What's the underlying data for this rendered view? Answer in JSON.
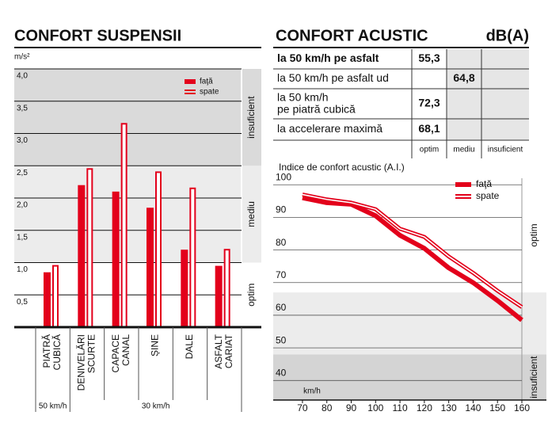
{
  "chart_data": [
    {
      "type": "bar",
      "title": "CONFORT SUSPENSII",
      "y_unit": "m/s²",
      "categories": [
        "PIATRĂ CUBICĂ",
        "DENIVELĂRI SCURTE",
        "CAPACE CANAL",
        "ȘINE",
        "DALE",
        "ASFALT CARIAT"
      ],
      "series": [
        {
          "name": "faţă",
          "color": "#e3001b",
          "values": [
            0.85,
            2.2,
            2.1,
            1.85,
            1.2,
            0.95
          ]
        },
        {
          "name": "spate",
          "color": "#e3001b",
          "values": [
            0.95,
            2.45,
            3.15,
            2.4,
            2.15,
            1.2
          ]
        }
      ],
      "ylim": [
        0,
        4
      ],
      "yticks": [
        {
          "value": 0.5,
          "label": "0,5"
        },
        {
          "value": 1,
          "label": "1,0"
        },
        {
          "value": 1.5,
          "label": "1,5"
        },
        {
          "value": 2,
          "label": "2,0"
        },
        {
          "value": 2.5,
          "label": "2,5"
        },
        {
          "value": 3,
          "label": "3,0"
        },
        {
          "value": 3.5,
          "label": "3,5"
        },
        {
          "value": 4,
          "label": "4,0"
        }
      ],
      "grid": true,
      "zones": [
        {
          "label": "optim",
          "from": 0,
          "to": 1,
          "color": "#ffffff"
        },
        {
          "label": "mediu",
          "from": 1,
          "to": 2.5,
          "color": "#ececec"
        },
        {
          "label": "insuficient",
          "from": 2.5,
          "to": 4,
          "color": "#dadada"
        }
      ],
      "speed_labels": [
        "50 km/h",
        "30 km/h"
      ]
    },
    {
      "type": "line",
      "title": "Indice de confort acustic  (A.I.)",
      "x_unit": "km/h",
      "x": [
        70,
        80,
        90,
        100,
        110,
        120,
        130,
        140,
        150,
        160
      ],
      "series": [
        {
          "name": "faţă",
          "color": "#e3001b",
          "values": [
            96,
            94.5,
            94,
            90.5,
            84.5,
            80.5,
            74.5,
            70,
            64.5,
            58.5
          ]
        },
        {
          "name": "spate",
          "color": "#e3001b",
          "values": [
            97,
            95.5,
            94.5,
            92.5,
            86.5,
            84,
            78,
            73,
            67.5,
            62.5
          ]
        }
      ],
      "xlim": [
        58,
        160
      ],
      "xticks": [
        70,
        80,
        90,
        100,
        110,
        120,
        130,
        140,
        150,
        160
      ],
      "ylim": [
        34,
        102
      ],
      "yticks": [
        40,
        50,
        60,
        70,
        80,
        90,
        100
      ],
      "grid": true,
      "zones": [
        {
          "label": "insuficient",
          "from": 34,
          "to": 48,
          "color": "#d4d4d4"
        },
        {
          "label": null,
          "from": 48,
          "to": 67,
          "color": "#ececec"
        },
        {
          "label": "optim",
          "from": 67,
          "to": 102,
          "color": "#ffffff"
        }
      ]
    }
  ],
  "table": {
    "title": "CONFORT ACUSTIC",
    "unit": "dB(A)",
    "columns": [
      "optim",
      "mediu",
      "insuficient"
    ],
    "rows": [
      [
        "la 50 km/h pe asfalt",
        "55,3",
        null,
        null
      ],
      [
        "la 50 km/h pe asfalt ud",
        null,
        "64,8",
        null
      ],
      [
        "la 50 km/h pe piatră cubică",
        "72,3",
        null,
        null
      ],
      [
        "la accelerare maximă",
        "68,1",
        null,
        null
      ]
    ]
  }
}
